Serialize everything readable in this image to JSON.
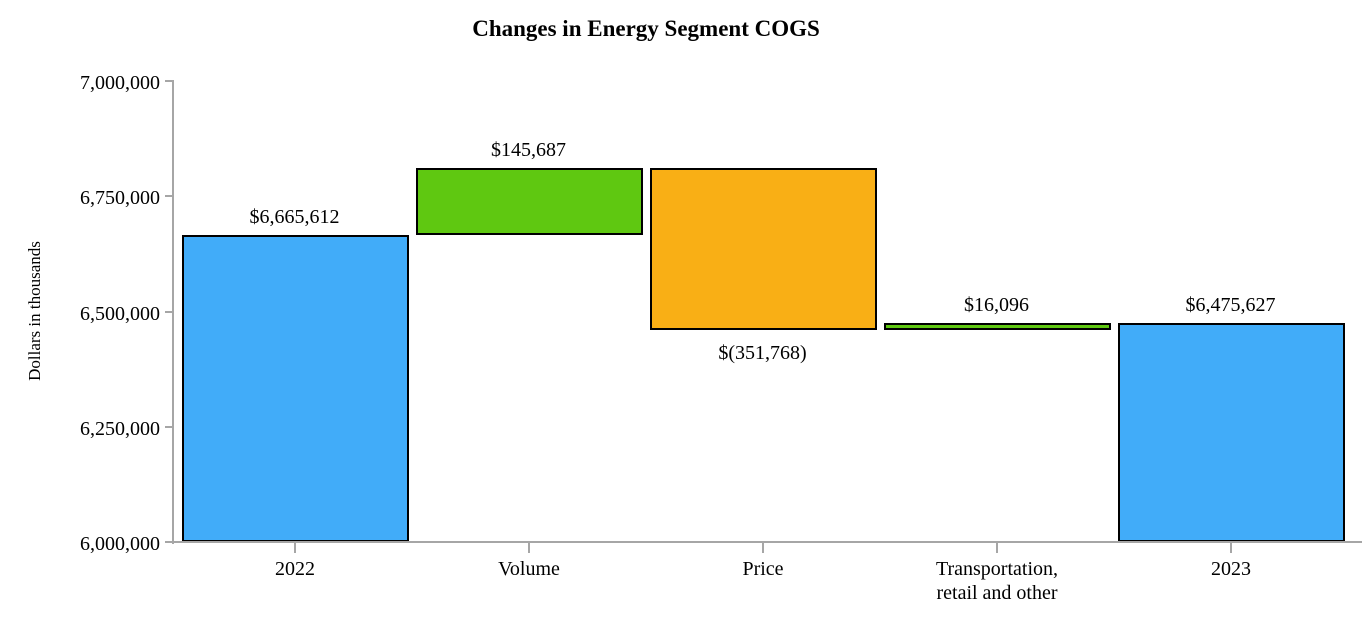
{
  "chart_data": {
    "type": "waterfall",
    "title": "Changes in Energy Segment COGS",
    "ylabel": "Dollars in thousands",
    "xlabel": "",
    "ylim": [
      6000000,
      7000000
    ],
    "ytick_step": 250000,
    "grid": false,
    "legend": null,
    "yticks": [
      {
        "value": 7000000,
        "label": "7,000,000"
      },
      {
        "value": 6750000,
        "label": "6,750,000"
      },
      {
        "value": 6500000,
        "label": "6,500,000"
      },
      {
        "value": 6250000,
        "label": "6,250,000"
      },
      {
        "value": 6000000,
        "label": "6,000,000"
      }
    ],
    "categories": [
      "2022",
      "Volume",
      "Price",
      "Transportation,\nretail and other",
      "2023"
    ],
    "bars": [
      {
        "category": "2022",
        "kind": "total",
        "value": 6665612,
        "value_label": "$6,665,612",
        "label_position": "above"
      },
      {
        "category": "Volume",
        "kind": "increase",
        "value": 145687,
        "value_label": "$145,687",
        "label_position": "above"
      },
      {
        "category": "Price",
        "kind": "decrease",
        "value": -351768,
        "value_label": "$(351,768)",
        "label_position": "below"
      },
      {
        "category": "Transportation,\nretail and other",
        "kind": "increase",
        "value": 16096,
        "value_label": "$16,096",
        "label_position": "above"
      },
      {
        "category": "2023",
        "kind": "total",
        "value": 6475627,
        "value_label": "$6,475,627",
        "label_position": "above"
      }
    ],
    "running_totals": [
      6665612,
      6811299,
      6459531,
      6475627
    ],
    "colors": {
      "total": "#41ACF9",
      "increase": "#5FC811",
      "decrease": "#F9AF15",
      "bar_border": "#000000",
      "axis": "#A6A6A6",
      "text": "#000000",
      "background": "#FFFFFF"
    }
  }
}
